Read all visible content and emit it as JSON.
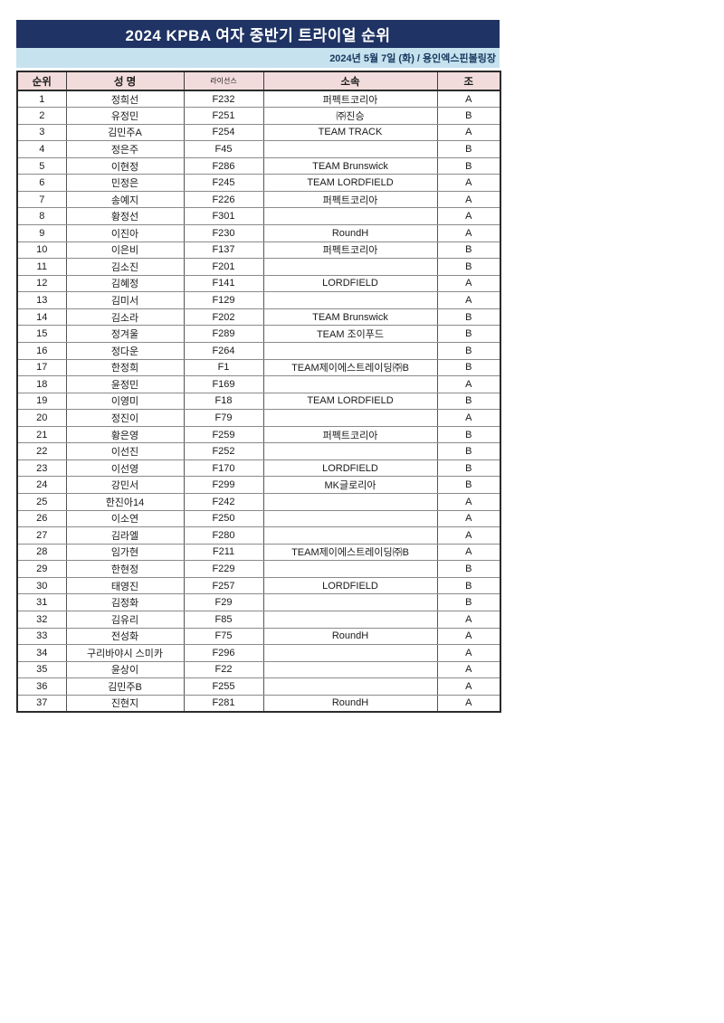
{
  "theme": {
    "navy": "#1f3364",
    "lightblue": "#c6e2ee",
    "pink": "#f2dcdb",
    "border-dark": "#2b2b2b"
  },
  "header": {
    "title": "2024 KPBA 여자 중반기 트라이얼 순위",
    "date_venue": "2024년 5월 7일 (화) / 용인엑스핀볼링장"
  },
  "table": {
    "headers": [
      "순위",
      "성 명",
      "라이선스",
      "소속",
      "조"
    ],
    "rows": [
      [
        "1",
        "정희선",
        "F232",
        "퍼펙트코리아",
        "A"
      ],
      [
        "2",
        "유정민",
        "F251",
        "㈜진승",
        "B"
      ],
      [
        "3",
        "김민주A",
        "F254",
        "TEAM TRACK",
        "A"
      ],
      [
        "4",
        "정은주",
        "F45",
        "",
        "B"
      ],
      [
        "5",
        "이현정",
        "F286",
        "TEAM Brunswick",
        "B"
      ],
      [
        "6",
        "민정은",
        "F245",
        "TEAM LORDFIELD",
        "A"
      ],
      [
        "7",
        "송예지",
        "F226",
        "퍼펙트코리아",
        "A"
      ],
      [
        "8",
        "황정선",
        "F301",
        "",
        "A"
      ],
      [
        "9",
        "이진아",
        "F230",
        "RoundH",
        "A"
      ],
      [
        "10",
        "이은비",
        "F137",
        "퍼펙트코리아",
        "B"
      ],
      [
        "11",
        "김소진",
        "F201",
        "",
        "B"
      ],
      [
        "12",
        "김혜정",
        "F141",
        "LORDFIELD",
        "A"
      ],
      [
        "13",
        "김미서",
        "F129",
        "",
        "A"
      ],
      [
        "14",
        "김소라",
        "F202",
        "TEAM Brunswick",
        "B"
      ],
      [
        "15",
        "정겨울",
        "F289",
        "TEAM 조이푸드",
        "B"
      ],
      [
        "16",
        "정다운",
        "F264",
        "",
        "B"
      ],
      [
        "17",
        "한정희",
        "F1",
        "TEAM제이에스트레이딩㈜B",
        "B"
      ],
      [
        "18",
        "윤정민",
        "F169",
        "",
        "A"
      ],
      [
        "19",
        "이영미",
        "F18",
        "TEAM LORDFIELD",
        "B"
      ],
      [
        "20",
        "정진이",
        "F79",
        "",
        "A"
      ],
      [
        "21",
        "황은영",
        "F259",
        "퍼펙트코리아",
        "B"
      ],
      [
        "22",
        "이선진",
        "F252",
        "",
        "B"
      ],
      [
        "23",
        "이선영",
        "F170",
        "LORDFIELD",
        "B"
      ],
      [
        "24",
        "강민서",
        "F299",
        "MK글로리아",
        "B"
      ],
      [
        "25",
        "한진아14",
        "F242",
        "",
        "A"
      ],
      [
        "26",
        "이소연",
        "F250",
        "",
        "A"
      ],
      [
        "27",
        "김라엘",
        "F280",
        "",
        "A"
      ],
      [
        "28",
        "임가현",
        "F211",
        "TEAM제이에스트레이딩㈜B",
        "A"
      ],
      [
        "29",
        "한현정",
        "F229",
        "",
        "B"
      ],
      [
        "30",
        "태영진",
        "F257",
        "LORDFIELD",
        "B"
      ],
      [
        "31",
        "김정화",
        "F29",
        "",
        "B"
      ],
      [
        "32",
        "김유리",
        "F85",
        "",
        "A"
      ],
      [
        "33",
        "전성화",
        "F75",
        "RoundH",
        "A"
      ],
      [
        "34",
        "구리바야시 스미카",
        "F296",
        "",
        "A"
      ],
      [
        "35",
        "윤상이",
        "F22",
        "",
        "A"
      ],
      [
        "36",
        "김민주B",
        "F255",
        "",
        "A"
      ],
      [
        "37",
        "진현지",
        "F281",
        "RoundH",
        "A"
      ]
    ]
  }
}
